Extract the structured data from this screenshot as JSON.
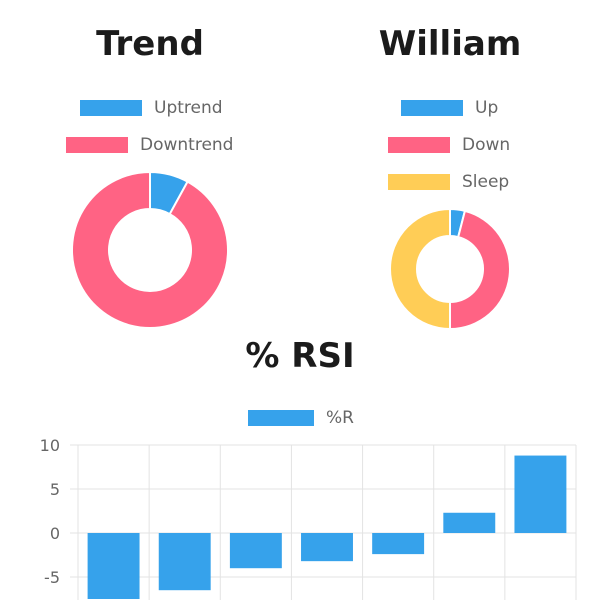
{
  "page": {
    "cut_title": ""
  },
  "charts": {
    "trend": {
      "title": "Trend",
      "legend": [
        {
          "label": "Uptrend",
          "color": "#36a2eb"
        },
        {
          "label": "Downtrend",
          "color": "#ff6384"
        }
      ]
    },
    "william": {
      "title": "William",
      "legend": [
        {
          "label": "Up",
          "color": "#36a2eb"
        },
        {
          "label": "Down",
          "color": "#ff6384"
        },
        {
          "label": "Sleep",
          "color": "#ffcd56"
        }
      ]
    },
    "rsi": {
      "title": "% RSI",
      "legend": [
        {
          "label": "%R",
          "color": "#36a2eb"
        }
      ]
    }
  },
  "chart_data": [
    {
      "type": "pie",
      "title": "Trend",
      "categories": [
        "Uptrend",
        "Downtrend"
      ],
      "values": [
        8,
        92
      ],
      "colors": [
        "#36a2eb",
        "#ff6384"
      ]
    },
    {
      "type": "pie",
      "title": "William",
      "categories": [
        "Up",
        "Down",
        "Sleep"
      ],
      "values": [
        4,
        46,
        50
      ],
      "colors": [
        "#36a2eb",
        "#ff6384",
        "#ffcd56"
      ]
    },
    {
      "type": "bar",
      "title": "% RSI",
      "series": [
        {
          "name": "%R",
          "values": [
            -7.5,
            -6.5,
            -4,
            -3.2,
            -2.4,
            2.3,
            8.8
          ]
        }
      ],
      "categories": [
        "",
        "",
        "",
        "",
        "",
        "",
        ""
      ],
      "ylim": [
        -7.5,
        10
      ],
      "yticks": [
        10,
        5,
        0,
        -5
      ],
      "grid": true,
      "color": "#36a2eb"
    }
  ]
}
